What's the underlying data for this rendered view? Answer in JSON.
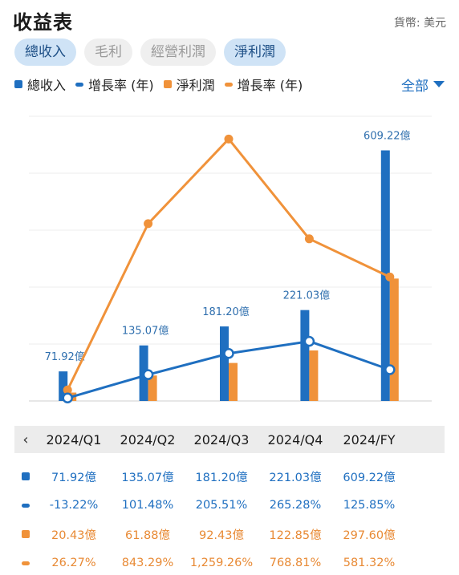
{
  "header": {
    "title": "收益表",
    "currency": "貨幣: 美元"
  },
  "tabs": [
    {
      "label": "總收入",
      "active": true
    },
    {
      "label": "毛利",
      "active": false
    },
    {
      "label": "經營利潤",
      "active": false
    },
    {
      "label": "淨利潤",
      "active": true
    }
  ],
  "legend": {
    "revenue": "總收入",
    "revenue_growth": "增長率 (年)",
    "net_income": "淨利潤",
    "net_growth": "增長率 (年)",
    "all_label": "全部"
  },
  "colors": {
    "blue": "#1f6fc0",
    "orange": "#f0923a"
  },
  "chart_data": {
    "type": "bar",
    "categories": [
      "2024/Q1",
      "2024/Q2",
      "2024/Q3",
      "2024/Q4",
      "2024/FY"
    ],
    "series": [
      {
        "name": "總收入",
        "kind": "bar",
        "values": [
          71.92,
          135.07,
          181.2,
          221.03,
          609.22
        ],
        "labels": [
          "71.92億",
          "135.07億",
          "181.20億",
          "221.03億",
          "609.22億"
        ]
      },
      {
        "name": "淨利潤",
        "kind": "bar",
        "values": [
          20.43,
          61.88,
          92.43,
          122.85,
          297.6
        ]
      },
      {
        "name": "增長率 (年)",
        "kind": "line",
        "of": "總收入",
        "values": [
          -13.22,
          101.48,
          205.51,
          265.28,
          125.85
        ]
      },
      {
        "name": "增長率 (年)",
        "kind": "line",
        "of": "淨利潤",
        "values": [
          26.27,
          843.29,
          1259.26,
          768.81,
          581.32
        ]
      }
    ],
    "grid": true
  },
  "table": {
    "periods": [
      "2024/Q1",
      "2024/Q2",
      "2024/Q3",
      "2024/Q4",
      "2024/FY"
    ],
    "rows": [
      {
        "icon": "blue-square-icon",
        "color": "blue",
        "values": [
          "71.92億",
          "135.07億",
          "181.20億",
          "221.03億",
          "609.22億"
        ]
      },
      {
        "icon": "blue-dash-icon",
        "color": "blue",
        "values": [
          "-13.22%",
          "101.48%",
          "205.51%",
          "265.28%",
          "125.85%"
        ]
      },
      {
        "icon": "orange-square-icon",
        "color": "orange",
        "values": [
          "20.43億",
          "61.88億",
          "92.43億",
          "122.85億",
          "297.60億"
        ]
      },
      {
        "icon": "orange-dash-icon",
        "color": "orange",
        "values": [
          "26.27%",
          "843.29%",
          "1,259.26%",
          "768.81%",
          "581.32%"
        ]
      }
    ]
  }
}
